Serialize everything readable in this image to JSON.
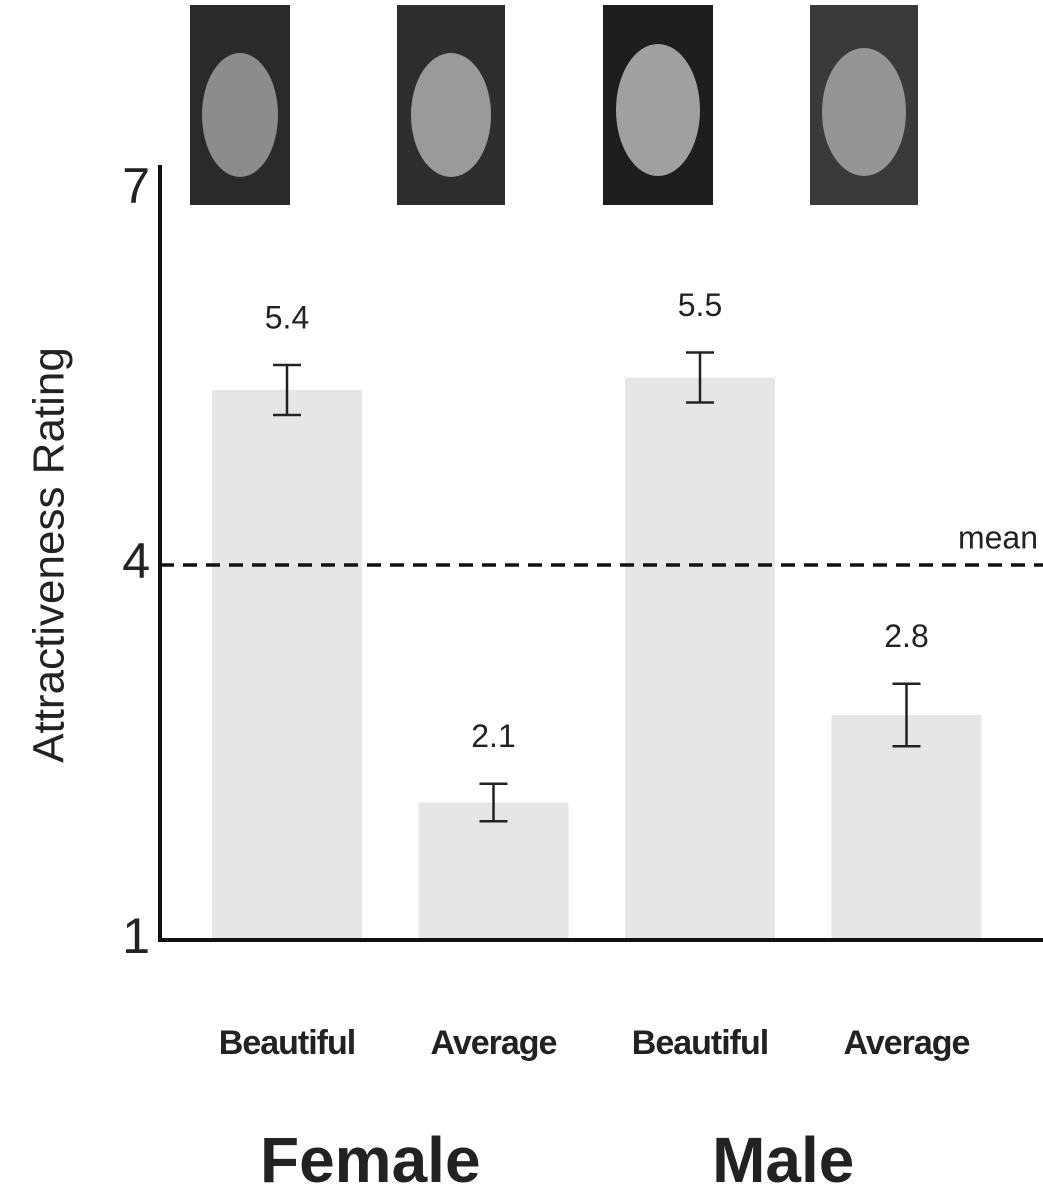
{
  "chart_data": {
    "type": "bar",
    "ylabel": "Attractiveness Rating",
    "categories": [
      "Beautiful",
      "Average",
      "Beautiful",
      "Average"
    ],
    "values": [
      5.4,
      2.1,
      5.5,
      2.8
    ],
    "errors": [
      0.2,
      0.15,
      0.2,
      0.25
    ],
    "groups": [
      "Female",
      "Male"
    ],
    "color": "#e6e6e6",
    "reference_line": {
      "value": 4,
      "label": "mean"
    },
    "ylim": [
      1,
      7
    ],
    "yticks": [
      1,
      4,
      7
    ]
  }
}
